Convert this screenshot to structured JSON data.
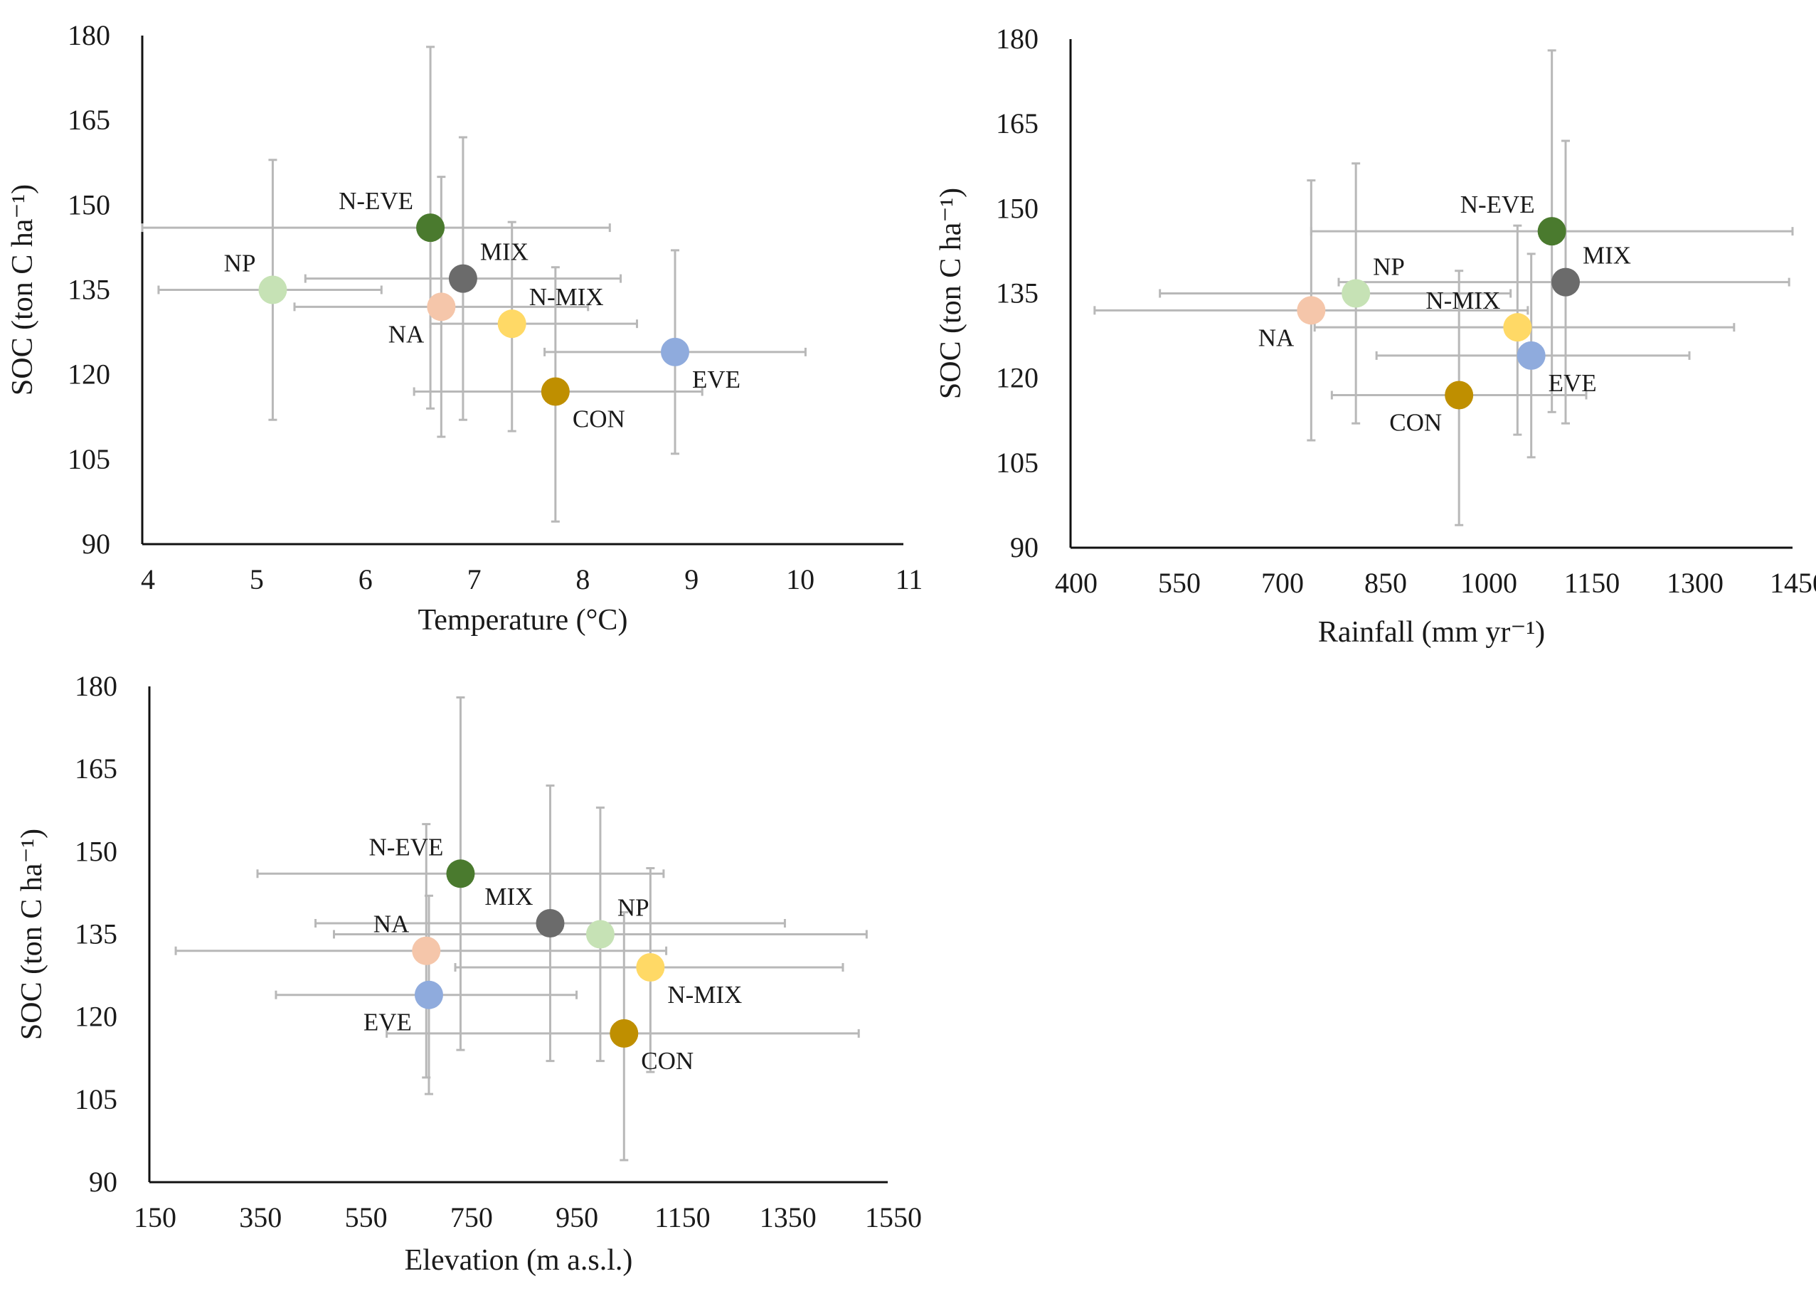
{
  "colors": {
    "N-EVE": "#4a7a2e",
    "MIX": "#6b6b6b",
    "NP": "#c6e2b5",
    "NA": "#f5c6aa",
    "N-MIX": "#ffd966",
    "EVE": "#8fabdd",
    "CON": "#bf8f00"
  },
  "chart_data": [
    {
      "type": "scatter",
      "title": "",
      "xlabel": "Temperature (°C)",
      "ylabel": "SOC (ton C ha⁻¹)",
      "xlim": [
        4,
        11
      ],
      "ylim": [
        90,
        180
      ],
      "xticks": [
        "4",
        "5",
        "6",
        "7",
        "8",
        "9",
        "10",
        "11"
      ],
      "yticks": [
        "90",
        "105",
        "120",
        "135",
        "150",
        "165",
        "180"
      ],
      "series": [
        {
          "name": "N-EVE",
          "x": 6.65,
          "y": 146,
          "x_err": [
            4.0,
            8.3
          ],
          "y_err": [
            114,
            178
          ],
          "label_pos": "upper-left"
        },
        {
          "name": "MIX",
          "x": 6.95,
          "y": 137,
          "x_err": [
            5.5,
            8.4
          ],
          "y_err": [
            112,
            162
          ],
          "label_pos": "upper-right"
        },
        {
          "name": "NP",
          "x": 5.2,
          "y": 135,
          "x_err": [
            4.15,
            6.2
          ],
          "y_err": [
            112,
            158
          ],
          "label_pos": "upper-left"
        },
        {
          "name": "NA",
          "x": 6.75,
          "y": 132,
          "x_err": [
            5.4,
            8.1
          ],
          "y_err": [
            109,
            155
          ],
          "label_pos": "lower-left"
        },
        {
          "name": "N-MIX",
          "x": 7.4,
          "y": 129,
          "x_err": [
            6.65,
            8.55
          ],
          "y_err": [
            110,
            147
          ],
          "label_pos": "upper-right"
        },
        {
          "name": "EVE",
          "x": 8.9,
          "y": 124,
          "x_err": [
            7.7,
            10.1
          ],
          "y_err": [
            106,
            142
          ],
          "label_pos": "lower-right"
        },
        {
          "name": "CON",
          "x": 7.8,
          "y": 117,
          "x_err": [
            6.5,
            9.15
          ],
          "y_err": [
            94,
            139
          ],
          "label_pos": "lower-right"
        }
      ]
    },
    {
      "type": "scatter",
      "title": "",
      "xlabel": "Rainfall (mm yr⁻¹)",
      "ylabel": "SOC (ton C ha⁻¹)",
      "xlim": [
        400,
        1450
      ],
      "ylim": [
        90,
        180
      ],
      "xticks": [
        "400",
        "550",
        "700",
        "850",
        "1000",
        "1150",
        "1300",
        "1450"
      ],
      "yticks": [
        "90",
        "105",
        "120",
        "135",
        "150",
        "165",
        "180"
      ],
      "series": [
        {
          "name": "N-EVE",
          "x": 1100,
          "y": 146,
          "x_err": [
            750,
            1450
          ],
          "y_err": [
            114,
            178
          ],
          "label_pos": "upper-left"
        },
        {
          "name": "MIX",
          "x": 1120,
          "y": 137,
          "x_err": [
            790,
            1445
          ],
          "y_err": [
            112,
            162
          ],
          "label_pos": "upper-right"
        },
        {
          "name": "NP",
          "x": 815,
          "y": 135,
          "x_err": [
            530,
            1040
          ],
          "y_err": [
            112,
            158
          ],
          "label_pos": "upper-right"
        },
        {
          "name": "NA",
          "x": 750,
          "y": 132,
          "x_err": [
            435,
            1065
          ],
          "y_err": [
            109,
            155
          ],
          "label_pos": "lower-left"
        },
        {
          "name": "N-MIX",
          "x": 1050,
          "y": 129,
          "x_err": [
            755,
            1365
          ],
          "y_err": [
            110,
            147
          ],
          "label_pos": "upper-left"
        },
        {
          "name": "EVE",
          "x": 1070,
          "y": 124,
          "x_err": [
            845,
            1300
          ],
          "y_err": [
            106,
            142
          ],
          "label_pos": "lower-right"
        },
        {
          "name": "CON",
          "x": 965,
          "y": 117,
          "x_err": [
            780,
            1150
          ],
          "y_err": [
            94,
            139
          ],
          "label_pos": "lower-left"
        }
      ]
    },
    {
      "type": "scatter",
      "title": "",
      "xlabel": "Elevation (m a.s.l.)",
      "ylabel": "SOC (ton C ha⁻¹)",
      "xlim": [
        150,
        1550
      ],
      "ylim": [
        90,
        180
      ],
      "xticks": [
        "150",
        "350",
        "550",
        "750",
        "950",
        "1150",
        "1350",
        "1550"
      ],
      "yticks": [
        "90",
        "105",
        "120",
        "135",
        "150",
        "165",
        "180"
      ],
      "series": [
        {
          "name": "N-EVE",
          "x": 740,
          "y": 146,
          "x_err": [
            355,
            1125
          ],
          "y_err": [
            114,
            178
          ],
          "label_pos": "upper-left"
        },
        {
          "name": "MIX",
          "x": 910,
          "y": 137,
          "x_err": [
            465,
            1355
          ],
          "y_err": [
            112,
            162
          ],
          "label_pos": "upper-left"
        },
        {
          "name": "NP",
          "x": 1005,
          "y": 135,
          "x_err": [
            500,
            1510
          ],
          "y_err": [
            112,
            158
          ],
          "label_pos": "upper-right"
        },
        {
          "name": "NA",
          "x": 675,
          "y": 132,
          "x_err": [
            200,
            1130
          ],
          "y_err": [
            109,
            155
          ],
          "label_pos": "upper-left"
        },
        {
          "name": "N-MIX",
          "x": 1100,
          "y": 129,
          "x_err": [
            730,
            1465
          ],
          "y_err": [
            110,
            147
          ],
          "label_pos": "lower-right"
        },
        {
          "name": "EVE",
          "x": 680,
          "y": 124,
          "x_err": [
            390,
            960
          ],
          "y_err": [
            106,
            142
          ],
          "label_pos": "lower-left"
        },
        {
          "name": "CON",
          "x": 1050,
          "y": 117,
          "x_err": [
            600,
            1495
          ],
          "y_err": [
            94,
            139
          ],
          "label_pos": "lower-right"
        }
      ]
    }
  ]
}
